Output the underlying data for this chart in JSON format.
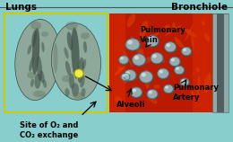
{
  "bg_color": "#87CECC",
  "border_color": "#cccc00",
  "title_lungs": "Lungs",
  "title_bronchiole": "Bronchiole",
  "label_site": "Site of O₂ and\nCO₂ exchange",
  "label_pulm_vein": "Pulmonary\nVein",
  "label_pulm_artery": "Pulmonary\nArtery",
  "label_alveoli": "Alveoli",
  "font_size_title": 7.5,
  "font_size_label": 6.0,
  "text_color": "#000000",
  "lung_gray": "#8ea89a",
  "lung_dark": "#3a4a42",
  "lung_mid": "#607060",
  "alv_face": "#a8bfc0",
  "alv_edge": "#607878",
  "red_vessel": "#cc2200",
  "orange_vessel": "#dd6600",
  "bronchiole_gray": "#90a8a8"
}
